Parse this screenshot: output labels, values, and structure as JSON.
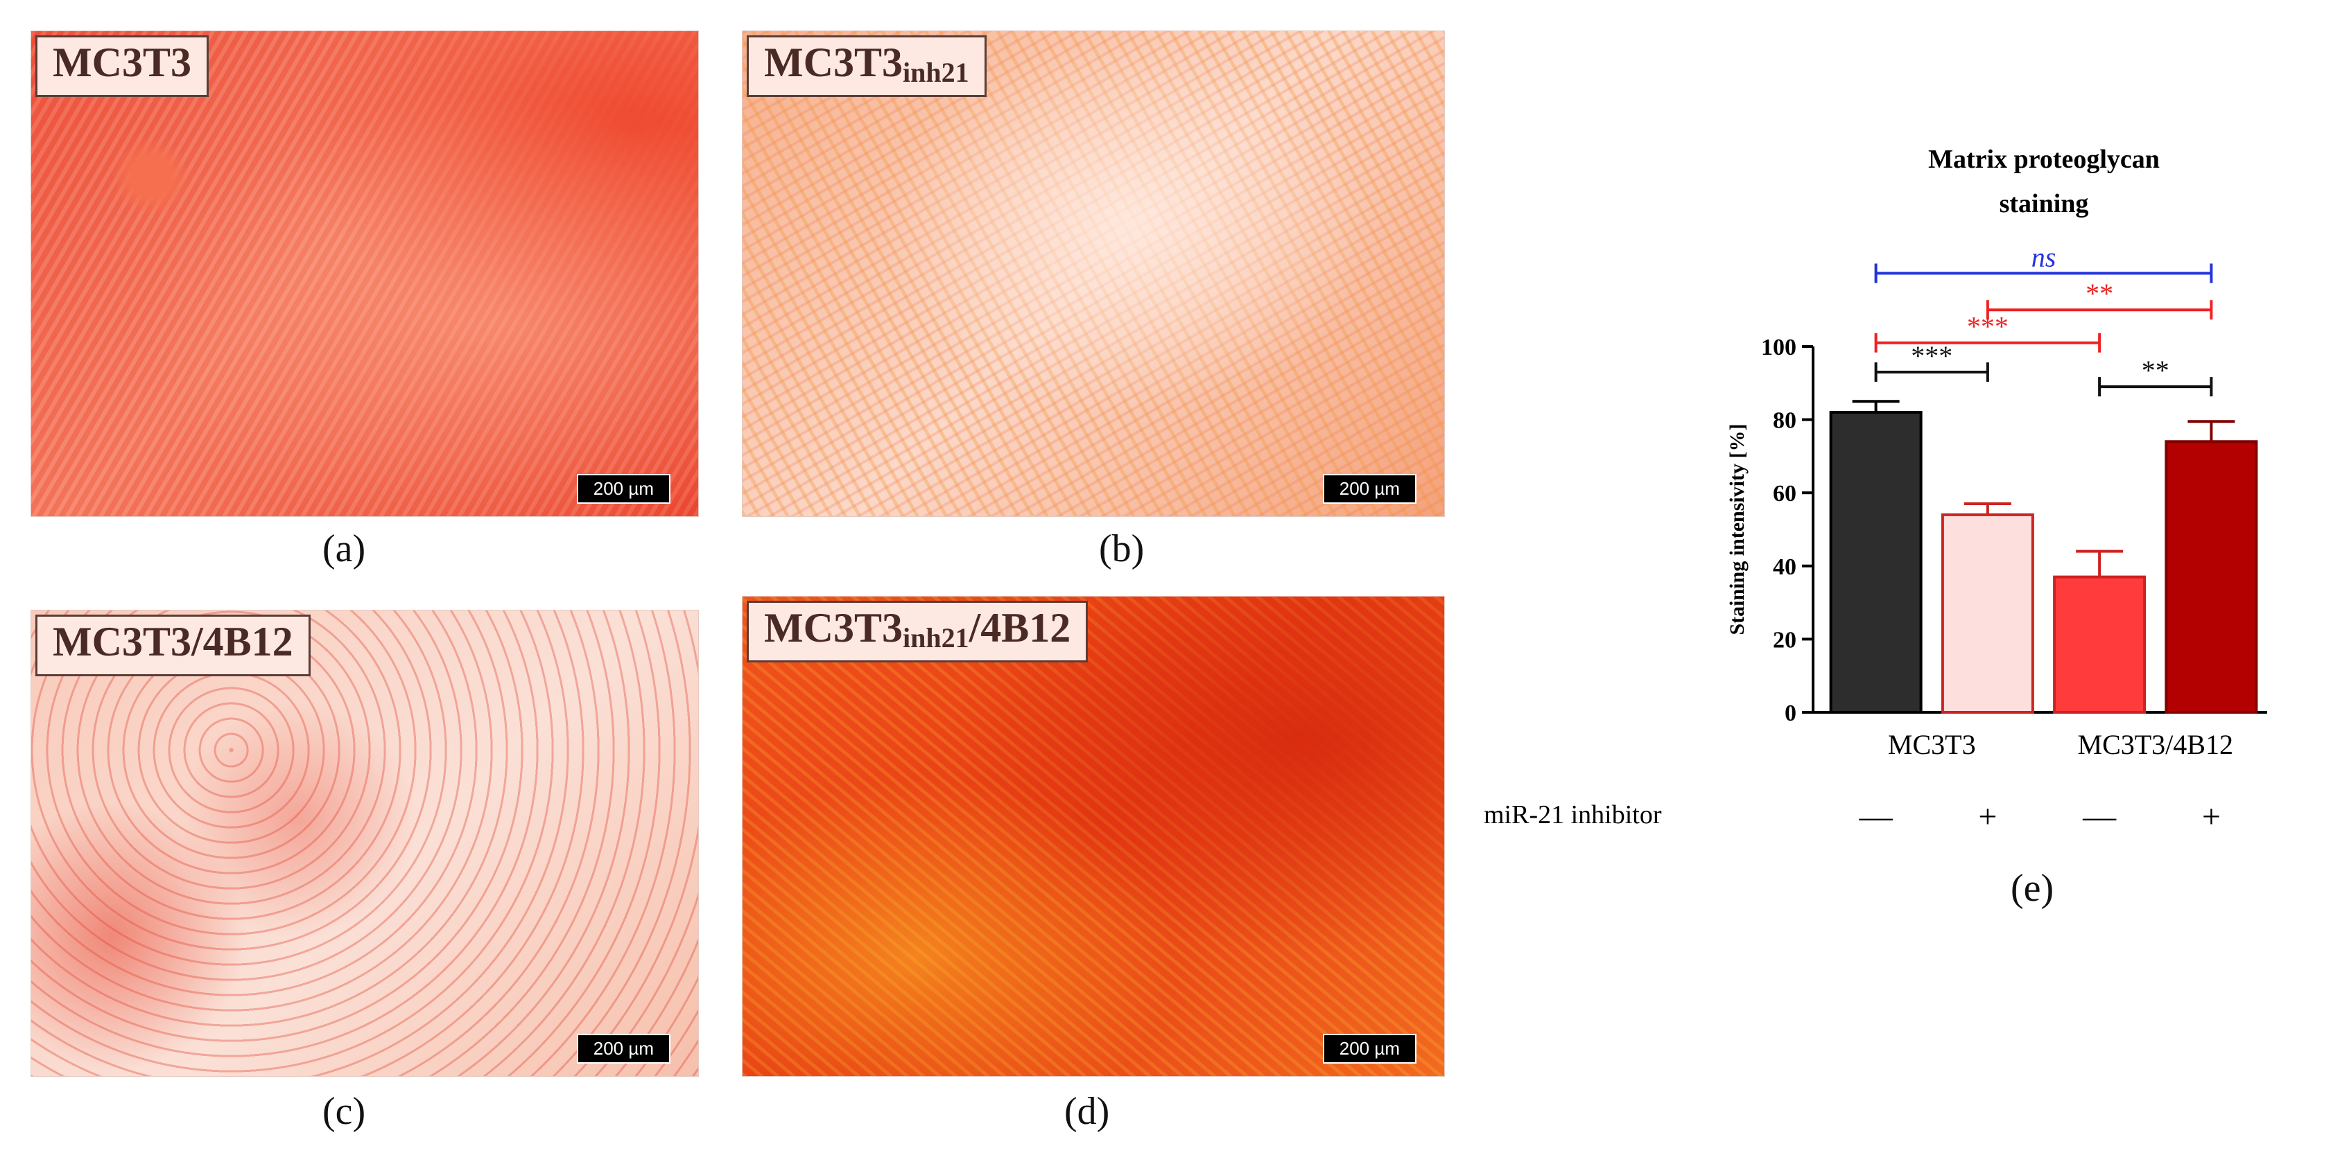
{
  "panels": [
    {
      "id": "a",
      "label_main": "MC3T3",
      "label_sub": "",
      "label_suffix": "",
      "caption": "(a)",
      "scale": "200 µm",
      "tone": "deep-red"
    },
    {
      "id": "b",
      "label_main": "MC3T3",
      "label_sub": "inh21",
      "label_suffix": "",
      "caption": "(b)",
      "scale": "200 µm",
      "tone": "pale-orange"
    },
    {
      "id": "c",
      "label_main": "MC3T3/4B12",
      "label_sub": "",
      "label_suffix": "",
      "caption": "(c)",
      "scale": "200 µm",
      "tone": "pale-pink"
    },
    {
      "id": "d",
      "label_main": "MC3T3",
      "label_sub": "inh21",
      "label_suffix": "/4B12",
      "caption": "(d)",
      "scale": "200 µm",
      "tone": "intense-red"
    }
  ],
  "chart_caption": "(e)",
  "chart_data": {
    "type": "bar",
    "title": [
      "Matrix proteoglycan",
      "staining"
    ],
    "ylabel": "Staining intensivity [%]",
    "ylim": [
      0,
      100
    ],
    "yticks": [
      0,
      20,
      40,
      60,
      80,
      100
    ],
    "bars": [
      {
        "value": 82,
        "error": 3,
        "fill": "#2d2d2d",
        "stroke": "#000000"
      },
      {
        "value": 54,
        "error": 3,
        "fill": "#fde0de",
        "stroke": "#cc2222"
      },
      {
        "value": 37,
        "error": 7,
        "fill": "#ff3b3b",
        "stroke": "#cc2222"
      },
      {
        "value": 74,
        "error": 5.5,
        "fill": "#b30000",
        "stroke": "#800000"
      }
    ],
    "group_labels": [
      {
        "text": "MC3T3",
        "bars": [
          0,
          1
        ]
      },
      {
        "text": "MC3T3/4B12",
        "bars": [
          2,
          3
        ]
      }
    ],
    "row_label": "miR-21 inhibitor",
    "treatment_marks": [
      "—",
      "+",
      "—",
      "+"
    ],
    "comparisons": [
      {
        "from": 0,
        "to": 3,
        "y": 120,
        "label": "ns",
        "italic": true,
        "color": "#2233dd"
      },
      {
        "from": 1,
        "to": 3,
        "y": 110,
        "label": "**",
        "italic": false,
        "color": "#ee2222"
      },
      {
        "from": 0,
        "to": 2,
        "y": 101,
        "label": "***",
        "italic": false,
        "color": "#ee2222"
      },
      {
        "from": 0,
        "to": 1,
        "y": 93,
        "label": "***",
        "italic": false,
        "color": "#111111"
      },
      {
        "from": 2,
        "to": 3,
        "y": 89,
        "label": "**",
        "italic": false,
        "color": "#111111"
      }
    ]
  }
}
